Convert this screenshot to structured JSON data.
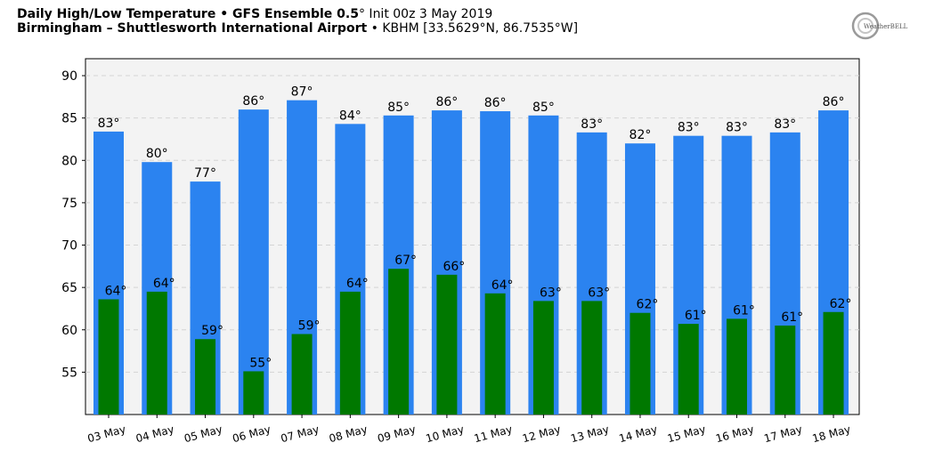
{
  "header": {
    "title_bold": "Daily High/Low Temperature • GFS Ensemble 0.5",
    "title_deg": "°",
    "title_rest": " Init 00z 3 May 2019",
    "subtitle_bold": "Birmingham – Shuttlesworth International Airport",
    "subtitle_rest": " • KBHM [33.5629°N, 86.7535°W]"
  },
  "logo": {
    "text": "WeatherBELL"
  },
  "colors": {
    "high": "#2b83f0",
    "low": "#007800",
    "plot_bg": "#f3f3f3"
  },
  "chart_data": {
    "type": "bar",
    "categories": [
      "03 May",
      "04 May",
      "05 May",
      "06 May",
      "07 May",
      "08 May",
      "09 May",
      "10 May",
      "11 May",
      "12 May",
      "13 May",
      "14 May",
      "15 May",
      "16 May",
      "17 May",
      "18 May"
    ],
    "series": [
      {
        "values": [
          83.4,
          79.8,
          77.5,
          86.0,
          87.1,
          84.3,
          85.3,
          85.9,
          85.8,
          85.3,
          83.3,
          82.0,
          82.9,
          82.9,
          83.3,
          85.9
        ],
        "labels": [
          "83°",
          "80°",
          "77°",
          "86°",
          "87°",
          "84°",
          "85°",
          "86°",
          "86°",
          "85°",
          "83°",
          "82°",
          "83°",
          "83°",
          "83°",
          "86°"
        ]
      },
      {
        "values": [
          63.6,
          64.5,
          58.9,
          55.1,
          59.5,
          64.5,
          67.2,
          66.5,
          64.3,
          63.4,
          63.4,
          62.0,
          60.7,
          61.3,
          60.5,
          62.1
        ],
        "labels": [
          "64°",
          "64°",
          "59°",
          "55°",
          "59°",
          "64°",
          "67°",
          "66°",
          "64°",
          "63°",
          "63°",
          "62°",
          "61°",
          "61°",
          "61°",
          "62°"
        ]
      }
    ],
    "yticks": [
      55,
      60,
      65,
      70,
      75,
      80,
      85,
      90
    ],
    "ylim": [
      50,
      92
    ],
    "grid": true,
    "legend": "none"
  }
}
